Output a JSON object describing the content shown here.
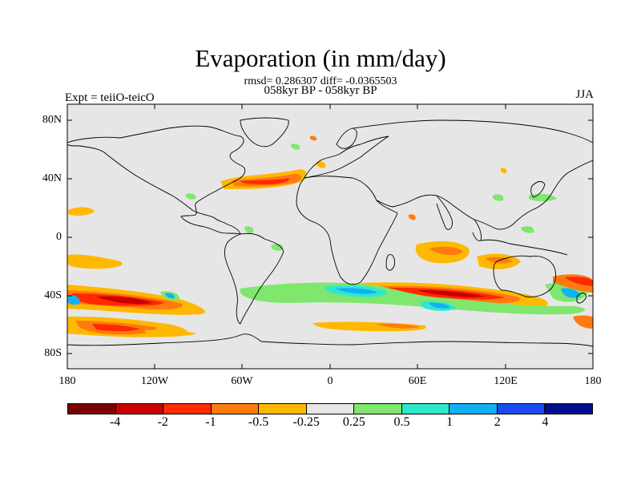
{
  "header": {
    "title": "Evaporation (in mm/day)",
    "stats": "rmsd= 0.286307 diff= -0.0365503",
    "period": "058kyr BP - 058kyr BP",
    "experiment": "Expt = teiiO-teicO",
    "season": "JJA"
  },
  "axes": {
    "lat_labels": [
      "80N",
      "40N",
      "0",
      "40S",
      "80S"
    ],
    "lon_labels": [
      "180",
      "120W",
      "60W",
      "0",
      "60E",
      "120E",
      "180"
    ]
  },
  "colorbar": {
    "colors": [
      "#7a0000",
      "#c80000",
      "#ff2a00",
      "#ff7a10",
      "#ffb800",
      "#e6e6e6",
      "#7fe66e",
      "#2fe8cc",
      "#12b0f5",
      "#1a4cf2",
      "#000e8c"
    ],
    "labels": [
      "-4",
      "-2",
      "-1",
      "-0.5",
      "-0.25",
      "0.25",
      "0.5",
      "1",
      "2",
      "4"
    ]
  },
  "map": {
    "background": "#e6e6e6",
    "anomaly_patches": [
      {
        "region": "north-atlantic",
        "level": "-1"
      },
      {
        "region": "southern-ocean-pacific-west",
        "level": "-2"
      },
      {
        "region": "southern-ocean-pacific-south",
        "level": "-1"
      },
      {
        "region": "southern-ocean-indian",
        "level": "-1"
      },
      {
        "region": "southern-ocean-positive-band",
        "level": "1"
      },
      {
        "region": "indian-ocean-east",
        "level": "-0.5"
      }
    ]
  }
}
